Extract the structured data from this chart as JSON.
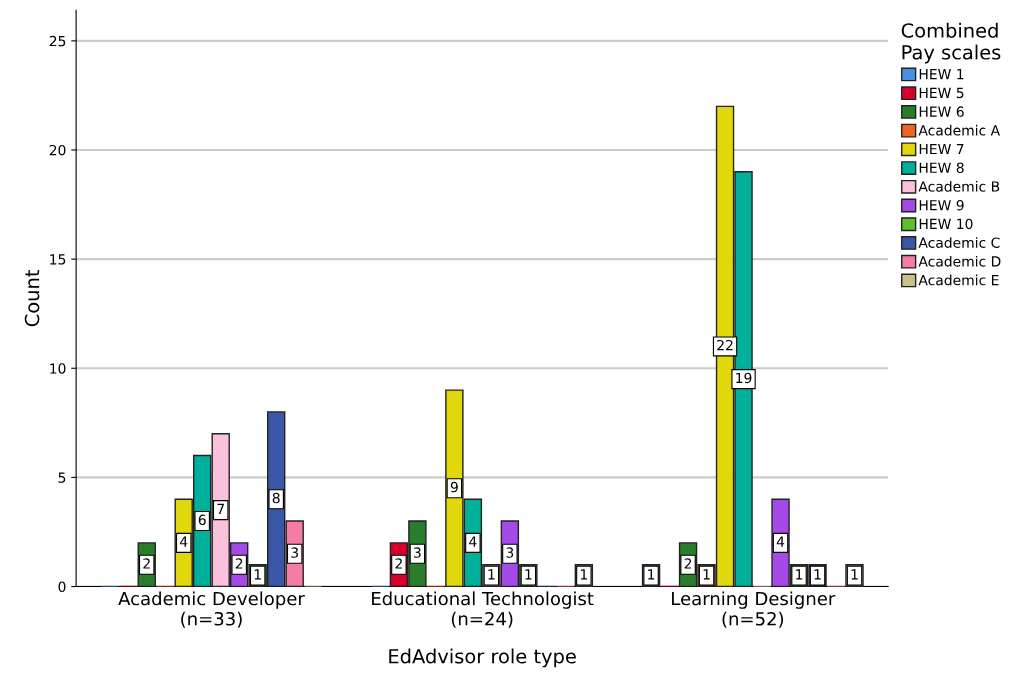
{
  "chart_data": {
    "type": "bar",
    "xlabel": "EdAdvisor role type",
    "ylabel": "Count",
    "legend_title": "Combined\nPay scales",
    "categories": [
      "Academic Developer\n(n=33)",
      "Educational Technologist\n(n=24)",
      "Learning Designer\n(n=52)"
    ],
    "series": [
      {
        "name": "HEW 1",
        "color": "#4a90e2",
        "values": [
          0,
          0,
          1
        ],
        "value_labels": [
          null,
          null,
          "1"
        ]
      },
      {
        "name": "HEW 5",
        "color": "#d8002a",
        "values": [
          0,
          2,
          0
        ],
        "value_labels": [
          null,
          "2",
          null
        ]
      },
      {
        "name": "HEW 6",
        "color": "#2a7d2a",
        "values": [
          2,
          3,
          2
        ],
        "value_labels": [
          "2",
          "3",
          "2"
        ]
      },
      {
        "name": "Academic A",
        "color": "#f26322",
        "values": [
          0,
          0,
          1
        ],
        "value_labels": [
          null,
          null,
          "1"
        ]
      },
      {
        "name": "HEW 7",
        "color": "#e0d80a",
        "values": [
          4,
          9,
          22
        ],
        "value_labels": [
          "4",
          "9",
          "22"
        ]
      },
      {
        "name": "HEW 8",
        "color": "#00b09b",
        "values": [
          6,
          4,
          19
        ],
        "value_labels": [
          "6",
          "4",
          "19"
        ]
      },
      {
        "name": "Academic B",
        "color": "#fbc0dc",
        "values": [
          7,
          1,
          0
        ],
        "value_labels": [
          "7",
          "1",
          null
        ]
      },
      {
        "name": "HEW 9",
        "color": "#a54ae8",
        "values": [
          2,
          3,
          4
        ],
        "value_labels": [
          "2",
          "3",
          "4"
        ]
      },
      {
        "name": "HEW 10",
        "color": "#5cc12c",
        "values": [
          1,
          1,
          1
        ],
        "value_labels": [
          "1",
          "1",
          "1"
        ]
      },
      {
        "name": "Academic C",
        "color": "#3a57a5",
        "values": [
          8,
          0,
          1
        ],
        "value_labels": [
          "8",
          null,
          "1"
        ]
      },
      {
        "name": "Academic D",
        "color": "#f47ca6",
        "values": [
          3,
          0,
          0
        ],
        "value_labels": [
          "3",
          null,
          null
        ]
      },
      {
        "name": "Academic E",
        "color": "#c9c08a",
        "values": [
          0,
          1,
          1
        ],
        "value_labels": [
          null,
          "1",
          "1"
        ]
      }
    ],
    "ylim": [
      0,
      26.4
    ],
    "yticks": [
      0,
      5,
      10,
      15,
      20,
      25
    ],
    "grid": "y",
    "legend": "top right"
  }
}
